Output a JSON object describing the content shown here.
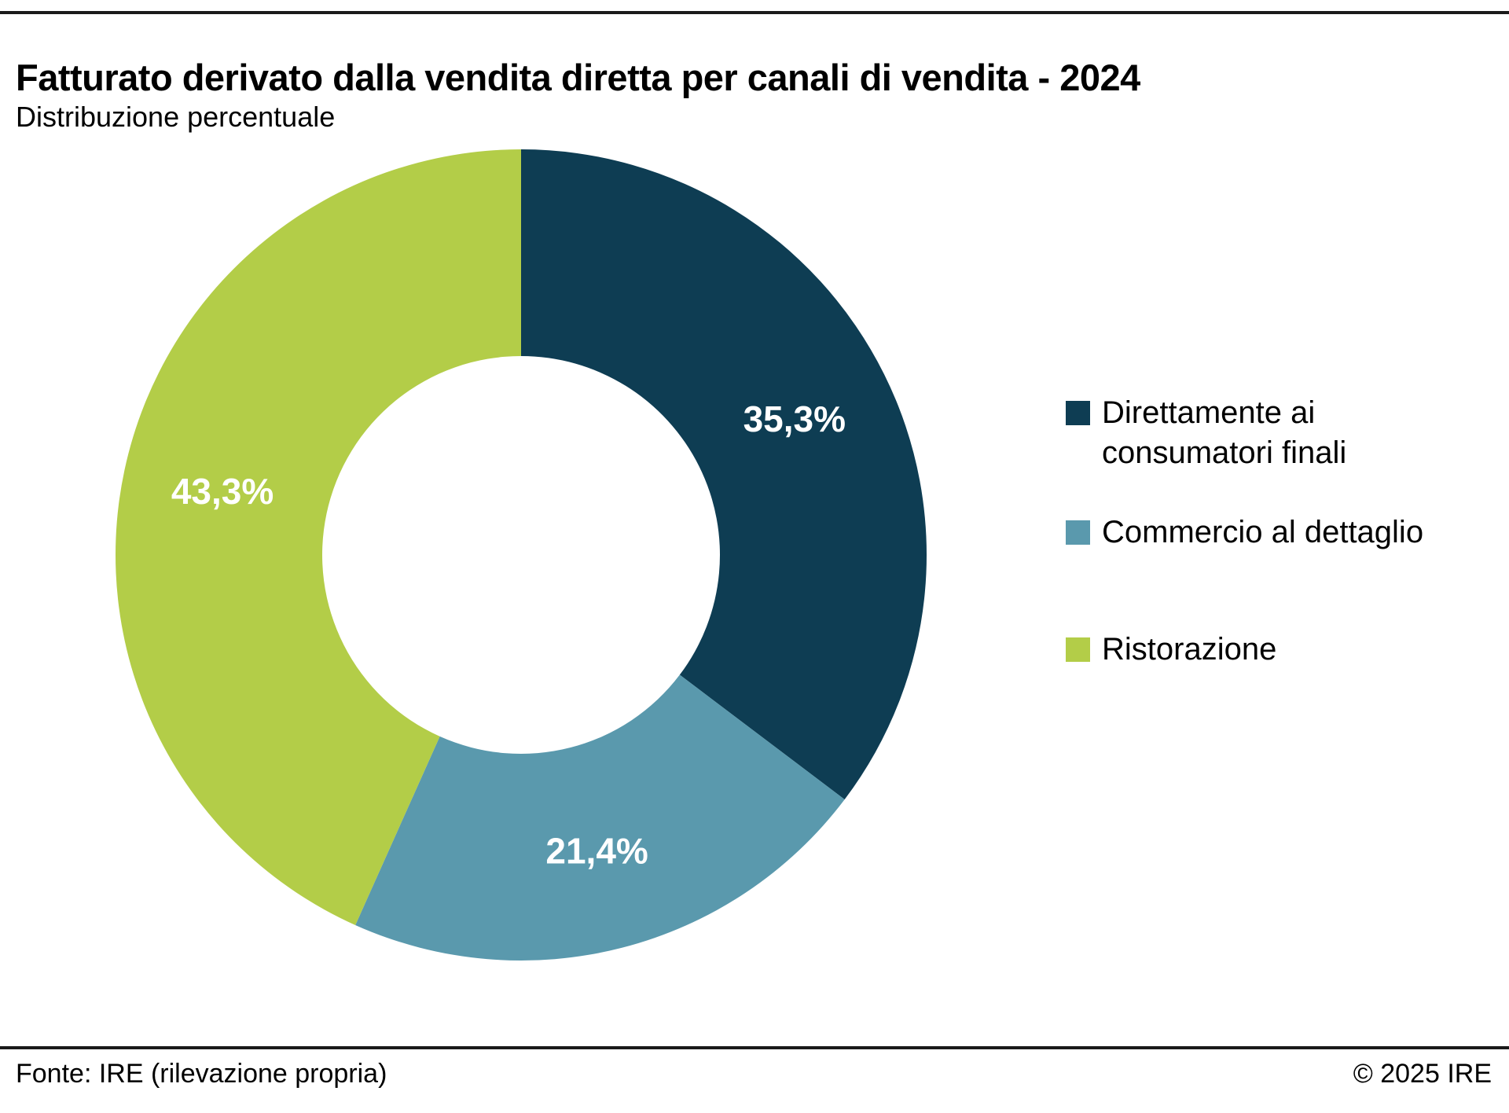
{
  "page": {
    "title": "Fatturato derivato dalla vendita diretta per canali di vendita - 2024",
    "subtitle": "Distribuzione percentuale",
    "footer_left": "Fonte: IRE (rilevazione propria)",
    "footer_right": "© 2025 IRE"
  },
  "colors": {
    "rule": "#1a1a1a",
    "label_text_on_slice": "#ffffff",
    "background": "#ffffff"
  },
  "chart_data": {
    "type": "pie",
    "subtype": "donut",
    "title": "Fatturato derivato dalla vendita diretta per canali di vendita - 2024",
    "subtitle": "Distribuzione percentuale",
    "categories": [
      "Direttamente ai consumatori finali",
      "Commercio al dettaglio",
      "Ristorazione"
    ],
    "values": [
      35.3,
      21.4,
      43.3
    ],
    "value_labels": [
      "35,3%",
      "21,4%",
      "43,3%"
    ],
    "colors": [
      "#0e3d53",
      "#5a99ad",
      "#b3cd48"
    ],
    "start_angle_deg": 0,
    "direction": "clockwise",
    "inner_radius_ratio": 0.49,
    "legend_position": "right",
    "source": "Fonte: IRE (rilevazione propria)",
    "copyright": "© 2025 IRE"
  },
  "legend": {
    "items": [
      {
        "label": "Direttamente ai consumatori finali",
        "color": "#0e3d53"
      },
      {
        "label": "Commercio al dettaglio",
        "color": "#5a99ad"
      },
      {
        "label": "Ristorazione",
        "color": "#b3cd48"
      }
    ]
  }
}
